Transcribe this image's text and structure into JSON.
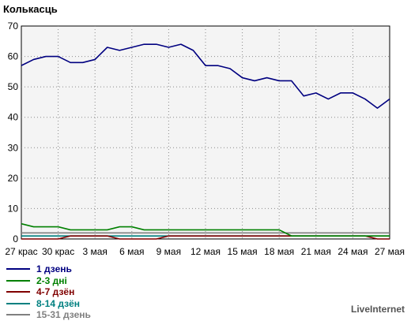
{
  "chart_data": {
    "type": "line",
    "title": "Колькасць",
    "ylim": [
      0,
      70
    ],
    "yticks": [
      0,
      10,
      20,
      30,
      40,
      50,
      60,
      70
    ],
    "x_tick_labels": [
      "27 крас",
      "30 крас",
      "3 мая",
      "6 мая",
      "9 мая",
      "12 мая",
      "15 мая",
      "18 мая",
      "21 мая",
      "24 мая",
      "27 мая"
    ],
    "grid": true,
    "legend_position": "bottom-left",
    "series": [
      {
        "name": "1 дзень",
        "color": "#000080",
        "values": [
          57,
          59,
          60,
          60,
          58,
          58,
          59,
          63,
          62,
          63,
          64,
          64,
          63,
          64,
          62,
          57,
          57,
          56,
          53,
          52,
          53,
          52,
          52,
          47,
          48,
          46,
          48,
          48,
          46,
          43,
          46
        ]
      },
      {
        "name": "2-3 дні",
        "color": "#008000",
        "values": [
          5,
          4,
          4,
          4,
          3,
          3,
          3,
          3,
          4,
          4,
          3,
          3,
          3,
          3,
          3,
          3,
          3,
          3,
          3,
          3,
          3,
          3,
          1,
          1,
          1,
          1,
          1,
          1,
          1,
          1,
          1
        ]
      },
      {
        "name": "4-7 дзён",
        "color": "#800000",
        "values": [
          0,
          0,
          0,
          0,
          1,
          1,
          1,
          1,
          0,
          0,
          0,
          0,
          1,
          1,
          1,
          1,
          1,
          1,
          1,
          1,
          1,
          1,
          1,
          1,
          1,
          1,
          1,
          1,
          1,
          0,
          0
        ]
      },
      {
        "name": "8-14 дзён",
        "color": "#008080",
        "values": [
          1,
          1,
          1,
          1,
          1,
          1,
          1,
          1,
          1,
          1,
          1,
          1,
          1,
          1,
          1,
          1,
          1,
          1,
          1,
          1,
          1,
          1,
          1,
          1,
          1,
          1,
          1,
          1,
          1,
          1,
          1
        ]
      },
      {
        "name": "15-31 дзень",
        "color": "#808080",
        "values": [
          2,
          2,
          2,
          2,
          2,
          2,
          2,
          2,
          2,
          2,
          2,
          2,
          2,
          2,
          2,
          2,
          2,
          2,
          2,
          2,
          2,
          2,
          2,
          2,
          2,
          2,
          2,
          2,
          2,
          2,
          2
        ]
      }
    ]
  },
  "credit": "LiveInternet"
}
